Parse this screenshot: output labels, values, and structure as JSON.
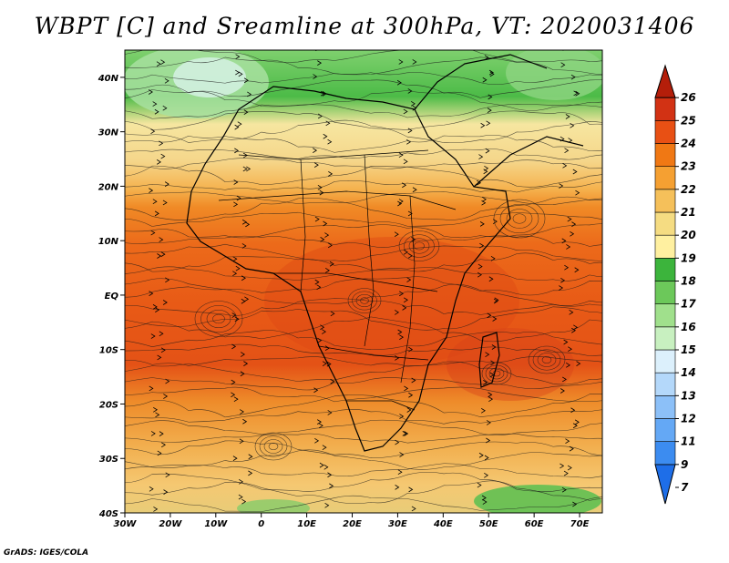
{
  "title": "WBPT [C] and Sreamline at 300hPa, VT: 2020031406",
  "credit": "GrADS: IGES/COLA",
  "map": {
    "variable": "WBPT [C]",
    "level": "300hPa",
    "valid_time": "2020031406",
    "lat_labels": [
      "40N",
      "30N",
      "20N",
      "10N",
      "EQ",
      "10S",
      "20S",
      "30S",
      "40S"
    ],
    "lat_values": [
      40,
      30,
      20,
      10,
      0,
      -10,
      -20,
      -30,
      -40
    ],
    "lon_labels": [
      "30W",
      "20W",
      "10W",
      "0",
      "10E",
      "20E",
      "30E",
      "40E",
      "50E",
      "60E",
      "70E"
    ],
    "lon_values": [
      -30,
      -20,
      -10,
      0,
      10,
      20,
      30,
      40,
      50,
      60,
      70
    ],
    "lat_range": [
      -40,
      45
    ],
    "lon_range": [
      -30,
      75
    ]
  },
  "colorbar": {
    "levels": [
      "7",
      "9",
      "11",
      "12",
      "13",
      "14",
      "15",
      "16",
      "17",
      "18",
      "19",
      "20",
      "21",
      "22",
      "23",
      "24",
      "25",
      "26"
    ],
    "colors": [
      "#1e6ee8",
      "#3c8cf0",
      "#64a8f5",
      "#8cc0f8",
      "#b4d8fa",
      "#dcf0fc",
      "#c8f0c0",
      "#a0e08c",
      "#6cc85a",
      "#3cb43c",
      "#fff0a0",
      "#f5dc82",
      "#f5c05a",
      "#f5a032",
      "#f07814",
      "#e85014",
      "#d23214",
      "#b41e0a"
    ]
  }
}
